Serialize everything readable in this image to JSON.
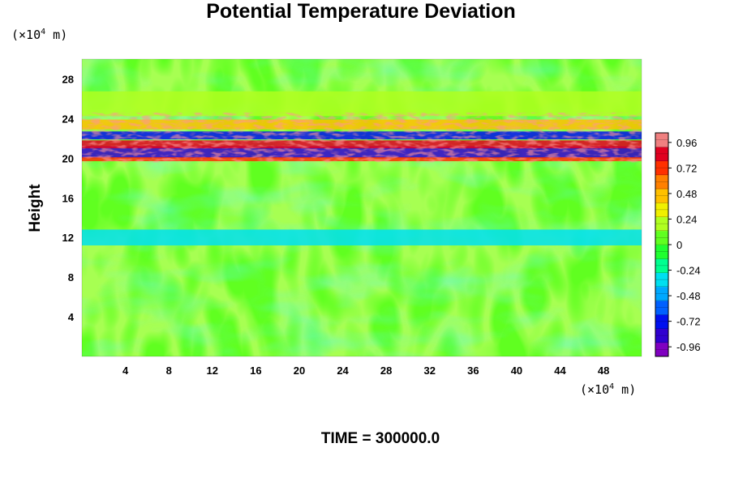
{
  "chart_data": {
    "type": "heatmap",
    "title": "Potential Temperature Deviation",
    "ylabel": "Height",
    "x_unit": {
      "prefix": "(×10",
      "exp": "4",
      "suffix": " m)"
    },
    "y_unit": {
      "prefix": "(×10",
      "exp": "4",
      "suffix": " m)"
    },
    "xlim": [
      0,
      51.5
    ],
    "ylim": [
      0,
      30
    ],
    "x_ticks": [
      4,
      8,
      12,
      16,
      20,
      24,
      28,
      32,
      36,
      40,
      44,
      48
    ],
    "y_ticks": [
      4,
      8,
      12,
      16,
      20,
      24,
      28
    ],
    "colorbar": {
      "min": -1.05,
      "max": 1.05,
      "ticks": [
        "0.96",
        "0.72",
        "0.48",
        "0.24",
        "0",
        "-0.24",
        "-0.48",
        "-0.72",
        "-0.96"
      ],
      "tick_values": [
        0.96,
        0.72,
        0.48,
        0.24,
        0,
        -0.24,
        -0.48,
        -0.72,
        -0.96
      ],
      "colors": [
        "#8000c0",
        "#3000d0",
        "#0010f0",
        "#0060ff",
        "#00a8ff",
        "#00e0f0",
        "#00ff90",
        "#20ff30",
        "#60ff20",
        "#b0ff20",
        "#f0f000",
        "#ffc000",
        "#ff8000",
        "#ff3000",
        "#e00020",
        "#f08080"
      ]
    },
    "background_value": 0.0,
    "features": [
      {
        "kind": "band",
        "y_center": 20.6,
        "thickness": 1.2,
        "value": -0.9
      },
      {
        "kind": "band",
        "y_center": 21.4,
        "thickness": 0.8,
        "value": 0.9
      },
      {
        "kind": "band",
        "y_center": 22.3,
        "thickness": 0.8,
        "value": -0.7
      },
      {
        "kind": "band",
        "y_center": 23.4,
        "thickness": 1.0,
        "value": 0.45
      },
      {
        "kind": "band",
        "y_center": 19.9,
        "thickness": 0.4,
        "value": 0.7
      },
      {
        "kind": "band",
        "y_center": 25.5,
        "thickness": 2.5,
        "value": 0.2
      },
      {
        "kind": "band",
        "y_center": 12.0,
        "thickness": 1.6,
        "value": -0.3
      }
    ],
    "annotation": {
      "label": "TIME",
      "value": "300000.0"
    }
  }
}
